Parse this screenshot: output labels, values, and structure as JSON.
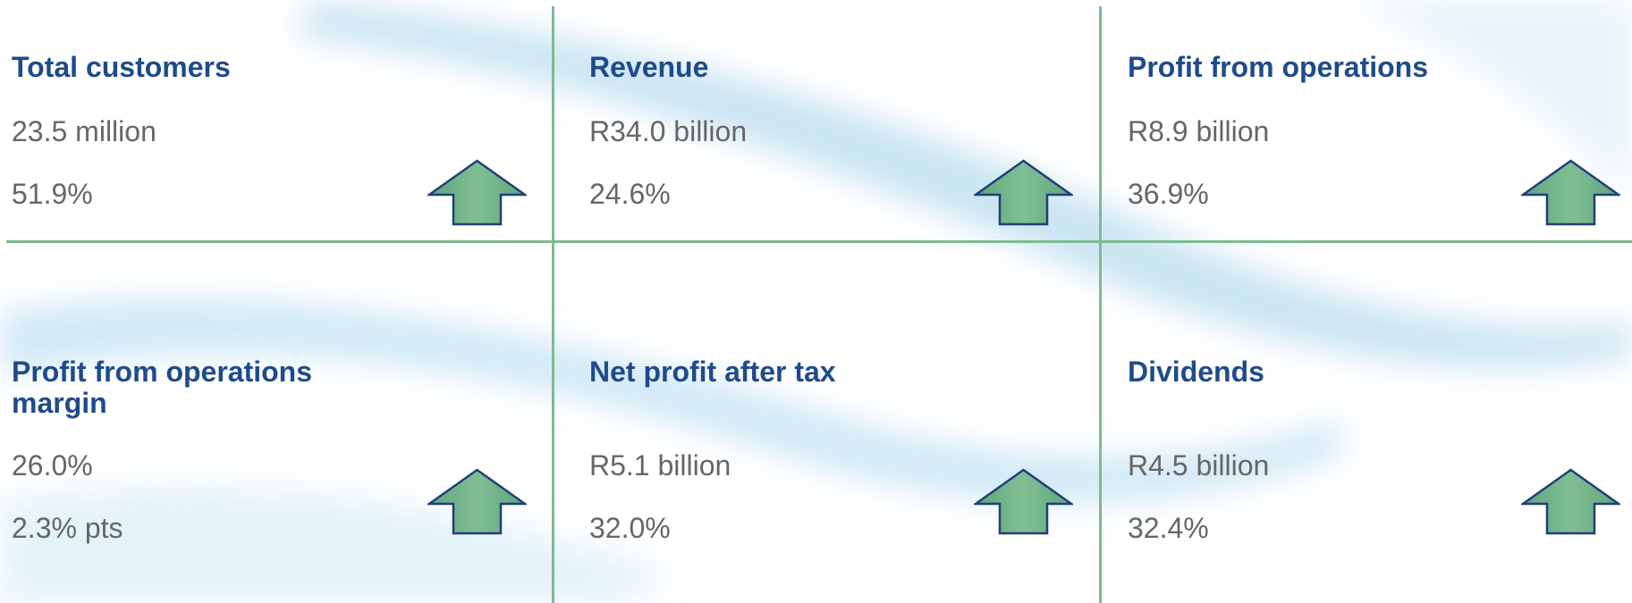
{
  "cards": [
    {
      "title": "Total customers",
      "value": "23.5 million",
      "change": "51.9%"
    },
    {
      "title": "Revenue",
      "value": "R34.0 billion",
      "change": "24.6%"
    },
    {
      "title": "Profit from operations",
      "value": "R8.9 billion",
      "change": "36.9%"
    },
    {
      "title": "Profit from operations margin",
      "value": "26.0%",
      "change": "2.3% pts"
    },
    {
      "title": "Net profit after tax",
      "value": "R5.1 billion",
      "change": "32.0%"
    },
    {
      "title": "Dividends",
      "value": "R4.5 billion",
      "change": "32.4%"
    }
  ]
}
